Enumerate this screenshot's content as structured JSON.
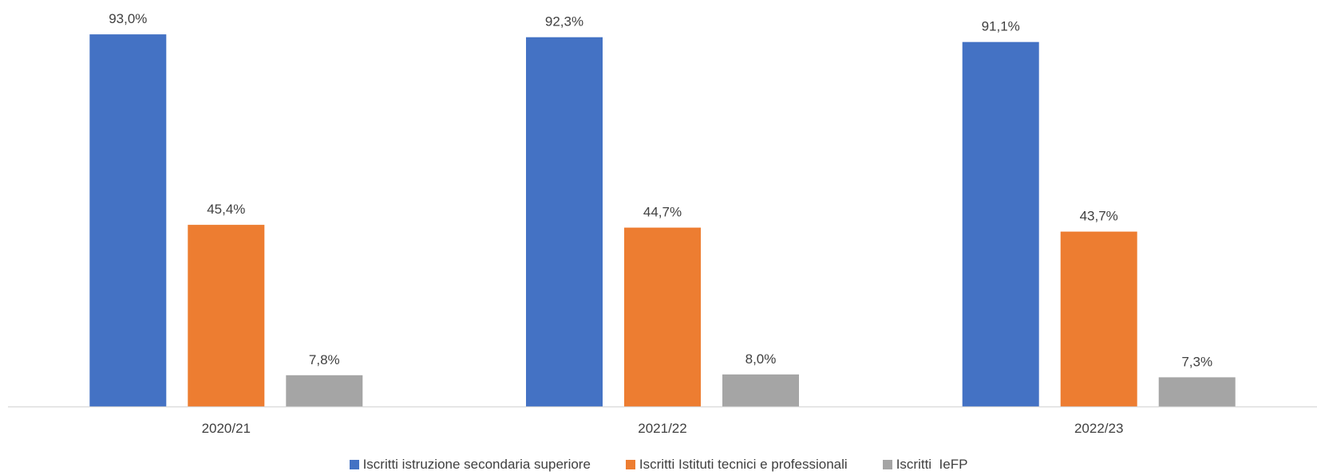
{
  "chart_data": {
    "type": "bar",
    "categories": [
      "2020/21",
      "2021/22",
      "2022/23"
    ],
    "series": [
      {
        "name": "Iscritti istruzione secondaria superiore",
        "color": "#4472C4",
        "values": [
          93.0,
          92.3,
          91.1
        ],
        "labels": [
          "93,0%",
          "92,3%",
          "91,1%"
        ]
      },
      {
        "name": "Iscritti Istituti tecnici e professionali",
        "color": "#ED7D31",
        "values": [
          45.4,
          44.7,
          43.7
        ],
        "labels": [
          "45,4%",
          "44,7%",
          "43,7%"
        ]
      },
      {
        "name": "Iscritti  IeFP",
        "color": "#A5A5A5",
        "values": [
          7.8,
          8.0,
          7.3
        ],
        "labels": [
          "7,8%",
          "8,0%",
          "7,3%"
        ]
      }
    ],
    "ylim": [
      0,
      100
    ],
    "grid": false,
    "legend_position": "bottom"
  }
}
